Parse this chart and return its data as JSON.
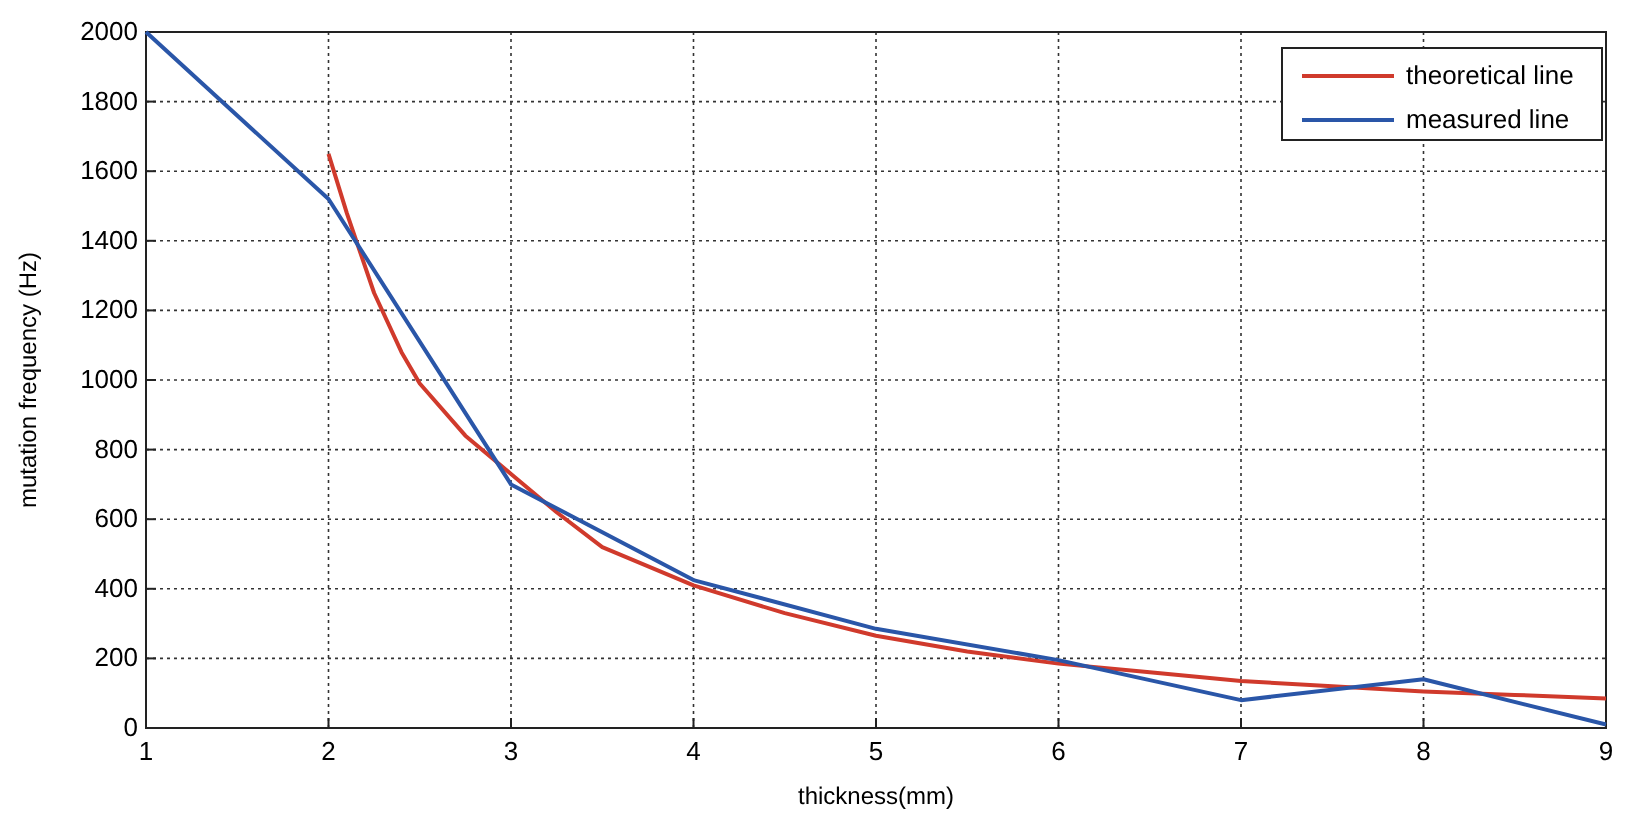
{
  "chart_data": {
    "type": "line",
    "xlabel": "thickness(mm)",
    "ylabel": "mutation frequency (Hz)",
    "xlim": [
      1,
      9
    ],
    "ylim": [
      0,
      2000
    ],
    "xticks": [
      1,
      2,
      3,
      4,
      5,
      6,
      7,
      8,
      9
    ],
    "yticks": [
      0,
      200,
      400,
      600,
      800,
      1000,
      1200,
      1400,
      1600,
      1800,
      2000
    ],
    "grid": true,
    "legend": "top right",
    "line_style": "solid",
    "marker": "none",
    "series": [
      {
        "name": "theoretical line",
        "color": "#d03a2c",
        "x": [
          2,
          2.1,
          2.25,
          2.4,
          2.5,
          2.75,
          3,
          3.25,
          3.5,
          4,
          4.5,
          5,
          5.5,
          6,
          6.5,
          7,
          7.5,
          8,
          8.5,
          9
        ],
        "values": [
          1650,
          1480,
          1250,
          1080,
          990,
          840,
          730,
          620,
          520,
          410,
          330,
          265,
          220,
          185,
          160,
          135,
          120,
          105,
          95,
          85
        ]
      },
      {
        "name": "measured line",
        "color": "#2a56a8",
        "x": [
          1,
          2,
          3,
          4,
          5,
          6,
          7,
          8,
          9
        ],
        "values": [
          2000,
          1520,
          700,
          425,
          285,
          195,
          80,
          140,
          10
        ]
      }
    ]
  }
}
